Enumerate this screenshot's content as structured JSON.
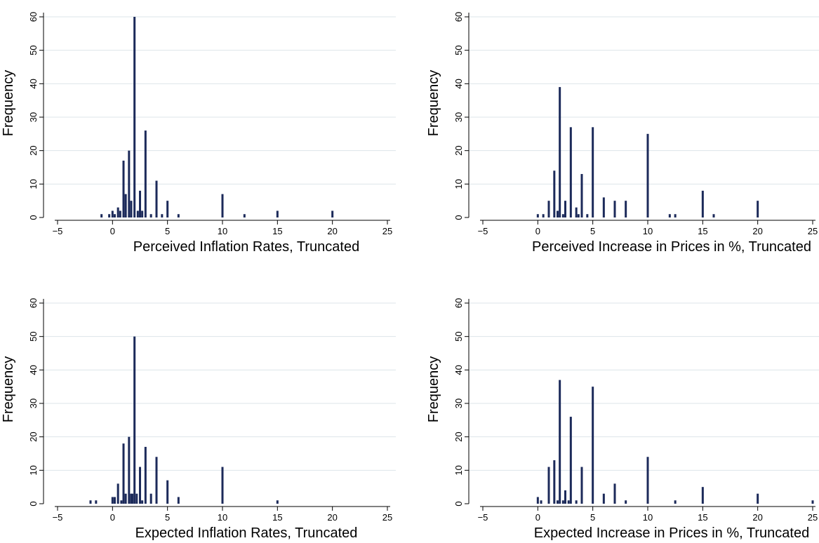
{
  "chart_data": [
    {
      "type": "bar",
      "xlabel": "Perceived Inflation Rates, Truncated",
      "ylabel": "Frequency",
      "xlim": [
        -5,
        25
      ],
      "ylim": [
        0,
        60
      ],
      "xticks": [
        -5,
        0,
        5,
        10,
        15,
        20,
        25
      ],
      "yticks": [
        0,
        10,
        20,
        30,
        40,
        50,
        60
      ],
      "grid": true,
      "bar_color": "#1c2a5a",
      "x": [
        -1,
        -0.3,
        0,
        0.2,
        0.5,
        0.7,
        1,
        1.2,
        1.5,
        1.7,
        2,
        2.3,
        2.5,
        2.7,
        3,
        3.5,
        4,
        4.5,
        5,
        6,
        10,
        12,
        15,
        20
      ],
      "values": [
        1,
        1,
        2,
        1,
        3,
        2,
        17,
        7,
        20,
        5,
        60,
        2,
        8,
        2,
        26,
        1,
        11,
        1,
        5,
        1,
        7,
        1,
        2,
        2
      ]
    },
    {
      "type": "bar",
      "xlabel": "Perceived Increase in Prices in %, Truncated",
      "ylabel": "Frequency",
      "xlim": [
        -5,
        25
      ],
      "ylim": [
        0,
        60
      ],
      "xticks": [
        -5,
        0,
        5,
        10,
        15,
        20,
        25
      ],
      "yticks": [
        0,
        10,
        20,
        30,
        40,
        50,
        60
      ],
      "grid": true,
      "bar_color": "#1c2a5a",
      "x": [
        0,
        0.5,
        1,
        1.5,
        1.8,
        2,
        2.3,
        2.5,
        3,
        3.5,
        3.7,
        4,
        4.5,
        5,
        6,
        7,
        8,
        10,
        12,
        12.5,
        15,
        16,
        20
      ],
      "values": [
        1,
        1,
        5,
        14,
        2,
        39,
        1,
        5,
        27,
        3,
        1,
        13,
        1,
        27,
        6,
        5,
        5,
        25,
        1,
        1,
        8,
        1,
        5
      ]
    },
    {
      "type": "bar",
      "xlabel": "Expected Inflation Rates, Truncated",
      "ylabel": "Frequency",
      "xlim": [
        -5,
        25
      ],
      "ylim": [
        0,
        60
      ],
      "xticks": [
        -5,
        0,
        5,
        10,
        15,
        20,
        25
      ],
      "yticks": [
        0,
        10,
        20,
        30,
        40,
        50,
        60
      ],
      "grid": true,
      "bar_color": "#1c2a5a",
      "x": [
        -2,
        -1.5,
        0,
        0.2,
        0.5,
        0.8,
        1,
        1.2,
        1.5,
        1.7,
        1.8,
        2,
        2.2,
        2.5,
        2.7,
        3,
        3.5,
        4,
        5,
        6,
        10,
        15
      ],
      "values": [
        1,
        1,
        2,
        2,
        6,
        1,
        18,
        3,
        20,
        3,
        3,
        50,
        3,
        11,
        1,
        17,
        3,
        14,
        7,
        2,
        11,
        1
      ]
    },
    {
      "type": "bar",
      "xlabel": "Expected Increase in Prices in %, Truncated",
      "ylabel": "Frequency",
      "xlim": [
        -5,
        25
      ],
      "ylim": [
        0,
        60
      ],
      "xticks": [
        -5,
        0,
        5,
        10,
        15,
        20,
        25
      ],
      "yticks": [
        0,
        10,
        20,
        30,
        40,
        50,
        60
      ],
      "grid": true,
      "bar_color": "#1c2a5a",
      "x": [
        0,
        0.3,
        1,
        1.5,
        1.8,
        2,
        2.3,
        2.5,
        2.8,
        3,
        3.5,
        4,
        5,
        6,
        7,
        8,
        10,
        12.5,
        15,
        20,
        25
      ],
      "values": [
        2,
        1,
        11,
        13,
        1,
        37,
        1,
        4,
        1,
        26,
        1,
        11,
        35,
        3,
        6,
        1,
        14,
        1,
        5,
        3,
        1
      ]
    }
  ]
}
